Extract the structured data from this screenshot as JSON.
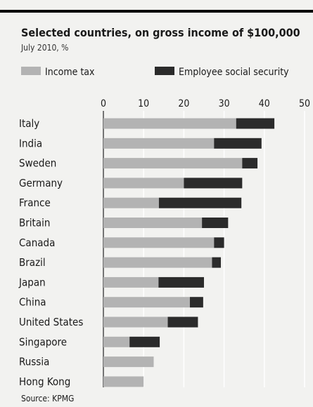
{
  "chart_data": {
    "type": "bar",
    "orientation": "horizontal",
    "stacked": true,
    "title": "Selected countries, on gross income of $100,000",
    "subtitle": "July 2010, %",
    "source": "Source: KPMG",
    "legend_position": "top",
    "xlim": [
      0,
      50
    ],
    "ticks": [
      0,
      10,
      20,
      30,
      40,
      50
    ],
    "grid": true,
    "categories": [
      "Italy",
      "India",
      "Sweden",
      "Germany",
      "France",
      "Britain",
      "Canada",
      "Brazil",
      "Japan",
      "China",
      "United States",
      "Singapore",
      "Russia",
      "Hong Kong"
    ],
    "series": [
      {
        "name": "Income tax",
        "color": "#b3b3b3",
        "values": [
          33,
          27.5,
          34.5,
          20,
          13.8,
          24.5,
          27.5,
          27,
          13.7,
          21.5,
          16,
          6.5,
          12.5,
          10
        ]
      },
      {
        "name": "Employee social security",
        "color": "#2b2b2b",
        "values": [
          9.5,
          11.8,
          3.8,
          14.5,
          20.5,
          6.5,
          2.5,
          2.2,
          11.3,
          3.3,
          7.5,
          7.5,
          0,
          0
        ]
      }
    ]
  }
}
